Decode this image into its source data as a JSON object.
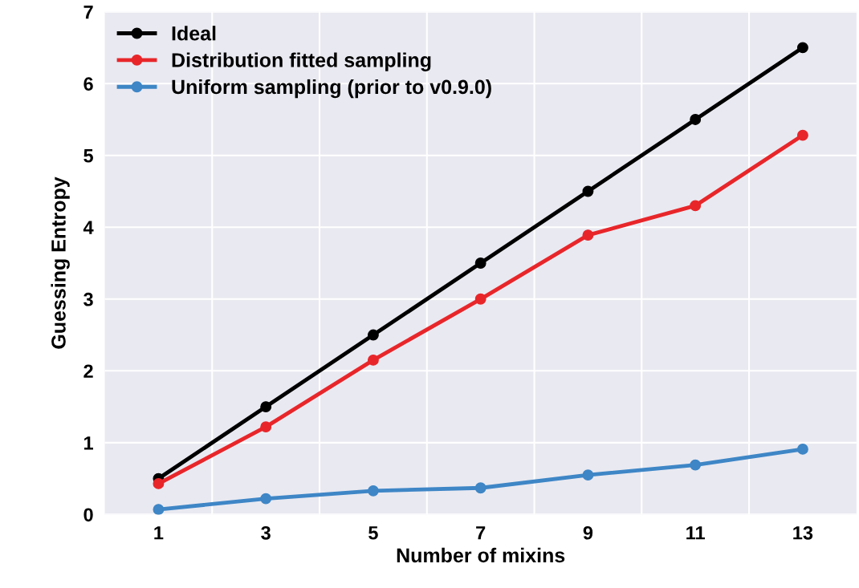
{
  "chart_data": {
    "type": "line",
    "xlabel": "Number of mixins",
    "ylabel": "Guessing Entropy",
    "categories": [
      "1",
      "3",
      "5",
      "7",
      "9",
      "11",
      "13"
    ],
    "series": [
      {
        "name": "Ideal",
        "color": "#000000",
        "values": [
          0.5,
          1.5,
          2.5,
          3.5,
          4.5,
          5.5,
          6.5
        ]
      },
      {
        "name": "Distribution fitted sampling",
        "color": "#e8262a",
        "values": [
          0.43,
          1.22,
          2.15,
          3.0,
          3.89,
          4.3,
          5.28
        ]
      },
      {
        "name": "Uniform sampling (prior to v0.9.0)",
        "color": "#3e86c6",
        "values": [
          0.07,
          0.22,
          0.33,
          0.37,
          0.55,
          0.69,
          0.91
        ]
      }
    ],
    "ylim": [
      0,
      7
    ],
    "yticks": [
      0,
      1,
      2,
      3,
      4,
      5,
      6,
      7
    ],
    "grid": true,
    "legend": "top left",
    "marker": "circle",
    "line_style": "solid"
  }
}
